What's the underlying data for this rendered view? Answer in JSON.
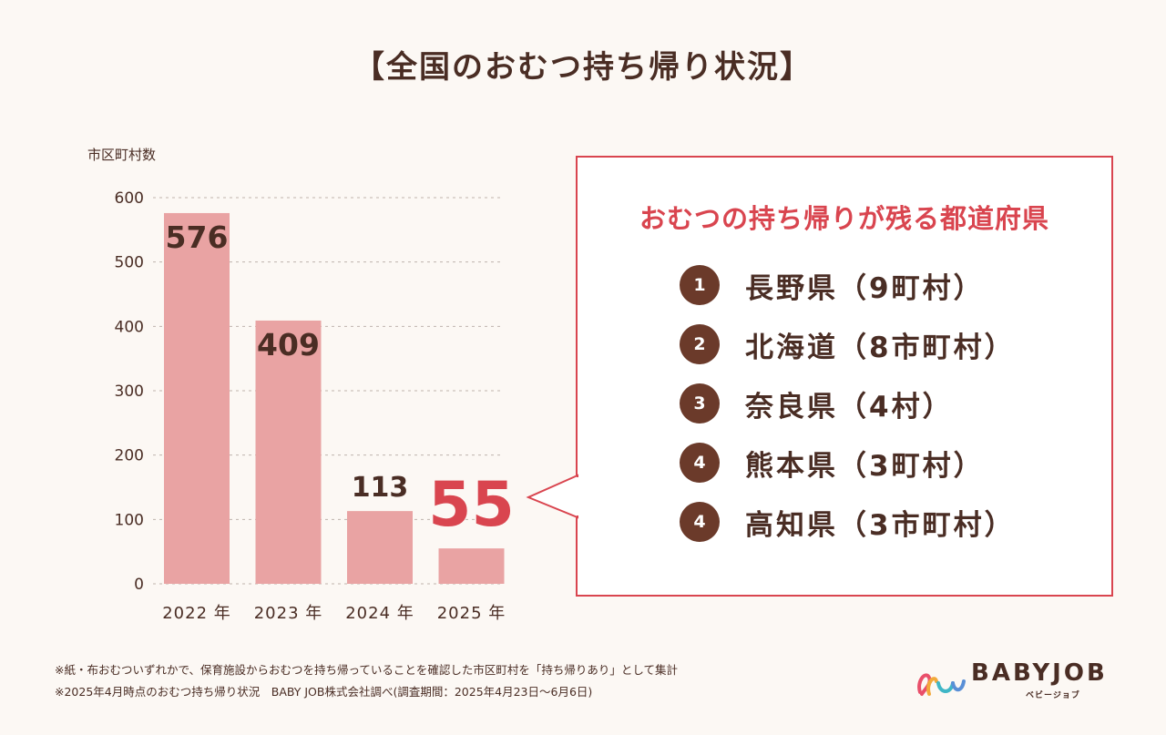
{
  "title": "【全国のおむつ持ち帰り状況】",
  "chart_data": {
    "type": "bar",
    "ylabel": "市区町村数",
    "categories": [
      "2022 年",
      "2023 年",
      "2024 年",
      "2025 年"
    ],
    "values": [
      576,
      409,
      113,
      55
    ],
    "data_labels": [
      "576",
      "409",
      "113",
      "55"
    ],
    "ylim": [
      0,
      600
    ],
    "yticks": [
      "0",
      "100",
      "200",
      "300",
      "400",
      "500",
      "600"
    ],
    "grid": true,
    "bar_color": "#e9a3a3",
    "highlight_color": "#d9454f"
  },
  "panel": {
    "heading": "おむつの持ち帰りが残る都道府県",
    "items": [
      {
        "rank": "1",
        "text": "長野県（9町村）"
      },
      {
        "rank": "2",
        "text": "北海道（8市町村）"
      },
      {
        "rank": "3",
        "text": "奈良県（4村）"
      },
      {
        "rank": "4",
        "text": "熊本県（3町村）"
      },
      {
        "rank": "4",
        "text": "高知県（3市町村）"
      }
    ]
  },
  "notes": [
    "※紙・布おむついずれかで、保育施設からおむつを持ち帰っていることを確認した市区町村を「持ち帰りあり」として集計",
    "※2025年4月時点のおむつ持ち帰り状況　BABY JOB株式会社調べ(調査期間：2025年4月23日～6月6日)"
  ],
  "logo": {
    "name": "BABYJOB",
    "sub": "ベビージョブ"
  },
  "colors": {
    "text": "#4a2d24",
    "accent": "#d9454f",
    "badge": "#6b3a2a",
    "background": "#fcf8f4"
  }
}
